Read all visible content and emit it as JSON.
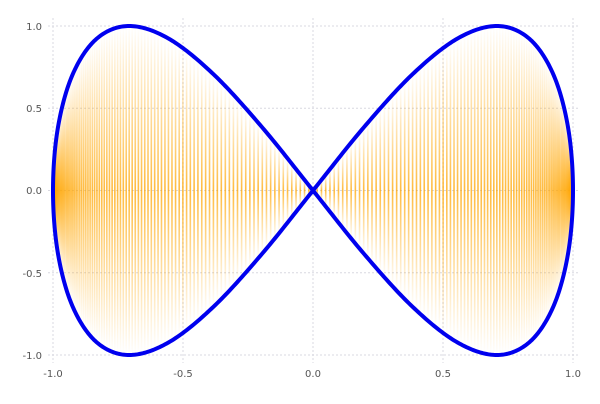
{
  "chart_data": {
    "type": "line",
    "title": "",
    "xlabel": "",
    "ylabel": "",
    "xlim": [
      -1.0,
      1.0
    ],
    "ylim": [
      -1.0,
      1.0
    ],
    "grid": true,
    "legend": "none",
    "x_ticks": [
      "-1.0",
      "-0.5",
      "0.0",
      "0.5",
      "1.0"
    ],
    "y_ticks": [
      "1.0",
      "0.5",
      "0.0",
      "-0.5",
      "-1.0"
    ],
    "series": [
      {
        "color": "#0000ee",
        "fill_to_zero": true,
        "fill_color": "#ffa500",
        "x": [
          1,
          0.981,
          0.924,
          0.831,
          0.707,
          0.556,
          0.383,
          0.195,
          0,
          -0.195,
          -0.383,
          -0.556,
          -0.707,
          -0.831,
          -0.924,
          -0.981,
          -1,
          -0.981,
          -0.924,
          -0.831,
          -0.707,
          -0.556,
          -0.383,
          -0.195,
          0,
          0.195,
          0.383,
          0.556,
          0.707,
          0.831,
          0.924,
          0.981,
          1
        ],
        "y": [
          0,
          0.383,
          0.707,
          0.924,
          1,
          0.924,
          0.707,
          0.383,
          0,
          -0.383,
          -0.707,
          -0.924,
          -1,
          -0.924,
          -0.707,
          -0.383,
          0,
          0.383,
          0.707,
          0.924,
          1,
          0.924,
          0.707,
          0.383,
          0,
          -0.383,
          -0.707,
          -0.924,
          -1,
          -0.924,
          -0.707,
          -0.383,
          0
        ]
      }
    ]
  }
}
